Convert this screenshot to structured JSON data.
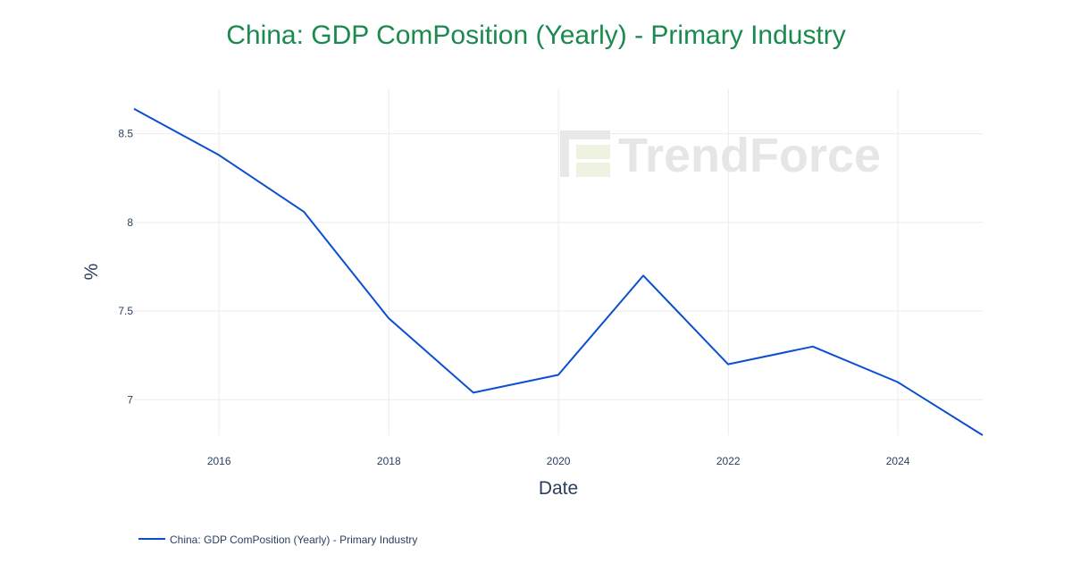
{
  "chart_data": {
    "type": "line",
    "title": "China: GDP ComPosition (Yearly) - Primary Industry",
    "xlabel": "Date",
    "ylabel": "%",
    "x": [
      "2014-12-31",
      "2015-12-31",
      "2016-12-31",
      "2017-12-31",
      "2018-12-31",
      "2019-12-31",
      "2020-12-31",
      "2021-12-31",
      "2022-12-31",
      "2023-12-31",
      "2024-12-31"
    ],
    "series": [
      {
        "name": "China: GDP ComPosition (Yearly) - Primary Industry",
        "values": [
          8.64,
          8.38,
          8.06,
          7.46,
          7.04,
          7.14,
          7.7,
          7.2,
          7.3,
          7.1,
          6.8
        ],
        "color": "#0b4fd0"
      }
    ],
    "xlim": [
      "2014-12-31",
      "2024-12-31"
    ],
    "ylim": [
      6.8,
      8.75
    ],
    "x_ticks": [
      "2016",
      "2018",
      "2020",
      "2022",
      "2024"
    ],
    "y_ticks": [
      "7",
      "7.5",
      "8",
      "8.5"
    ],
    "grid": true,
    "legend_position": "bottom-left"
  },
  "watermark": {
    "text": "TrendForce"
  },
  "colors": {
    "title": "#1a8a4e",
    "line": "#0b4fd0",
    "grid": "#ebebeb",
    "axis_text": "#2a3f5f"
  }
}
